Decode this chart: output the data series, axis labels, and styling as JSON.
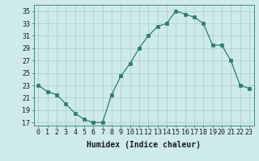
{
  "x": [
    0,
    1,
    2,
    3,
    4,
    5,
    6,
    7,
    8,
    9,
    10,
    11,
    12,
    13,
    14,
    15,
    16,
    17,
    18,
    19,
    20,
    21,
    22,
    23
  ],
  "y": [
    23,
    22,
    21.5,
    20,
    18.5,
    17.5,
    17.0,
    17.0,
    21.5,
    24.5,
    26.5,
    29,
    31,
    32.5,
    33,
    35,
    34.5,
    34,
    33,
    29.5,
    29.5,
    27,
    23,
    22.5
  ],
  "line_color": "#2e7d6e",
  "marker": "s",
  "marker_size": 2.5,
  "bg_color": "#ceeaea",
  "grid_color": "#a8cccc",
  "xlabel": "Humidex (Indice chaleur)",
  "xlim": [
    -0.5,
    23.5
  ],
  "ylim": [
    16.5,
    36
  ],
  "yticks": [
    17,
    19,
    21,
    23,
    25,
    27,
    29,
    31,
    33,
    35
  ],
  "xtick_labels": [
    "0",
    "1",
    "2",
    "3",
    "4",
    "5",
    "6",
    "7",
    "8",
    "9",
    "10",
    "11",
    "12",
    "13",
    "14",
    "15",
    "16",
    "17",
    "18",
    "19",
    "20",
    "21",
    "22",
    "23"
  ],
  "xlabel_fontsize": 7,
  "tick_fontsize": 6
}
